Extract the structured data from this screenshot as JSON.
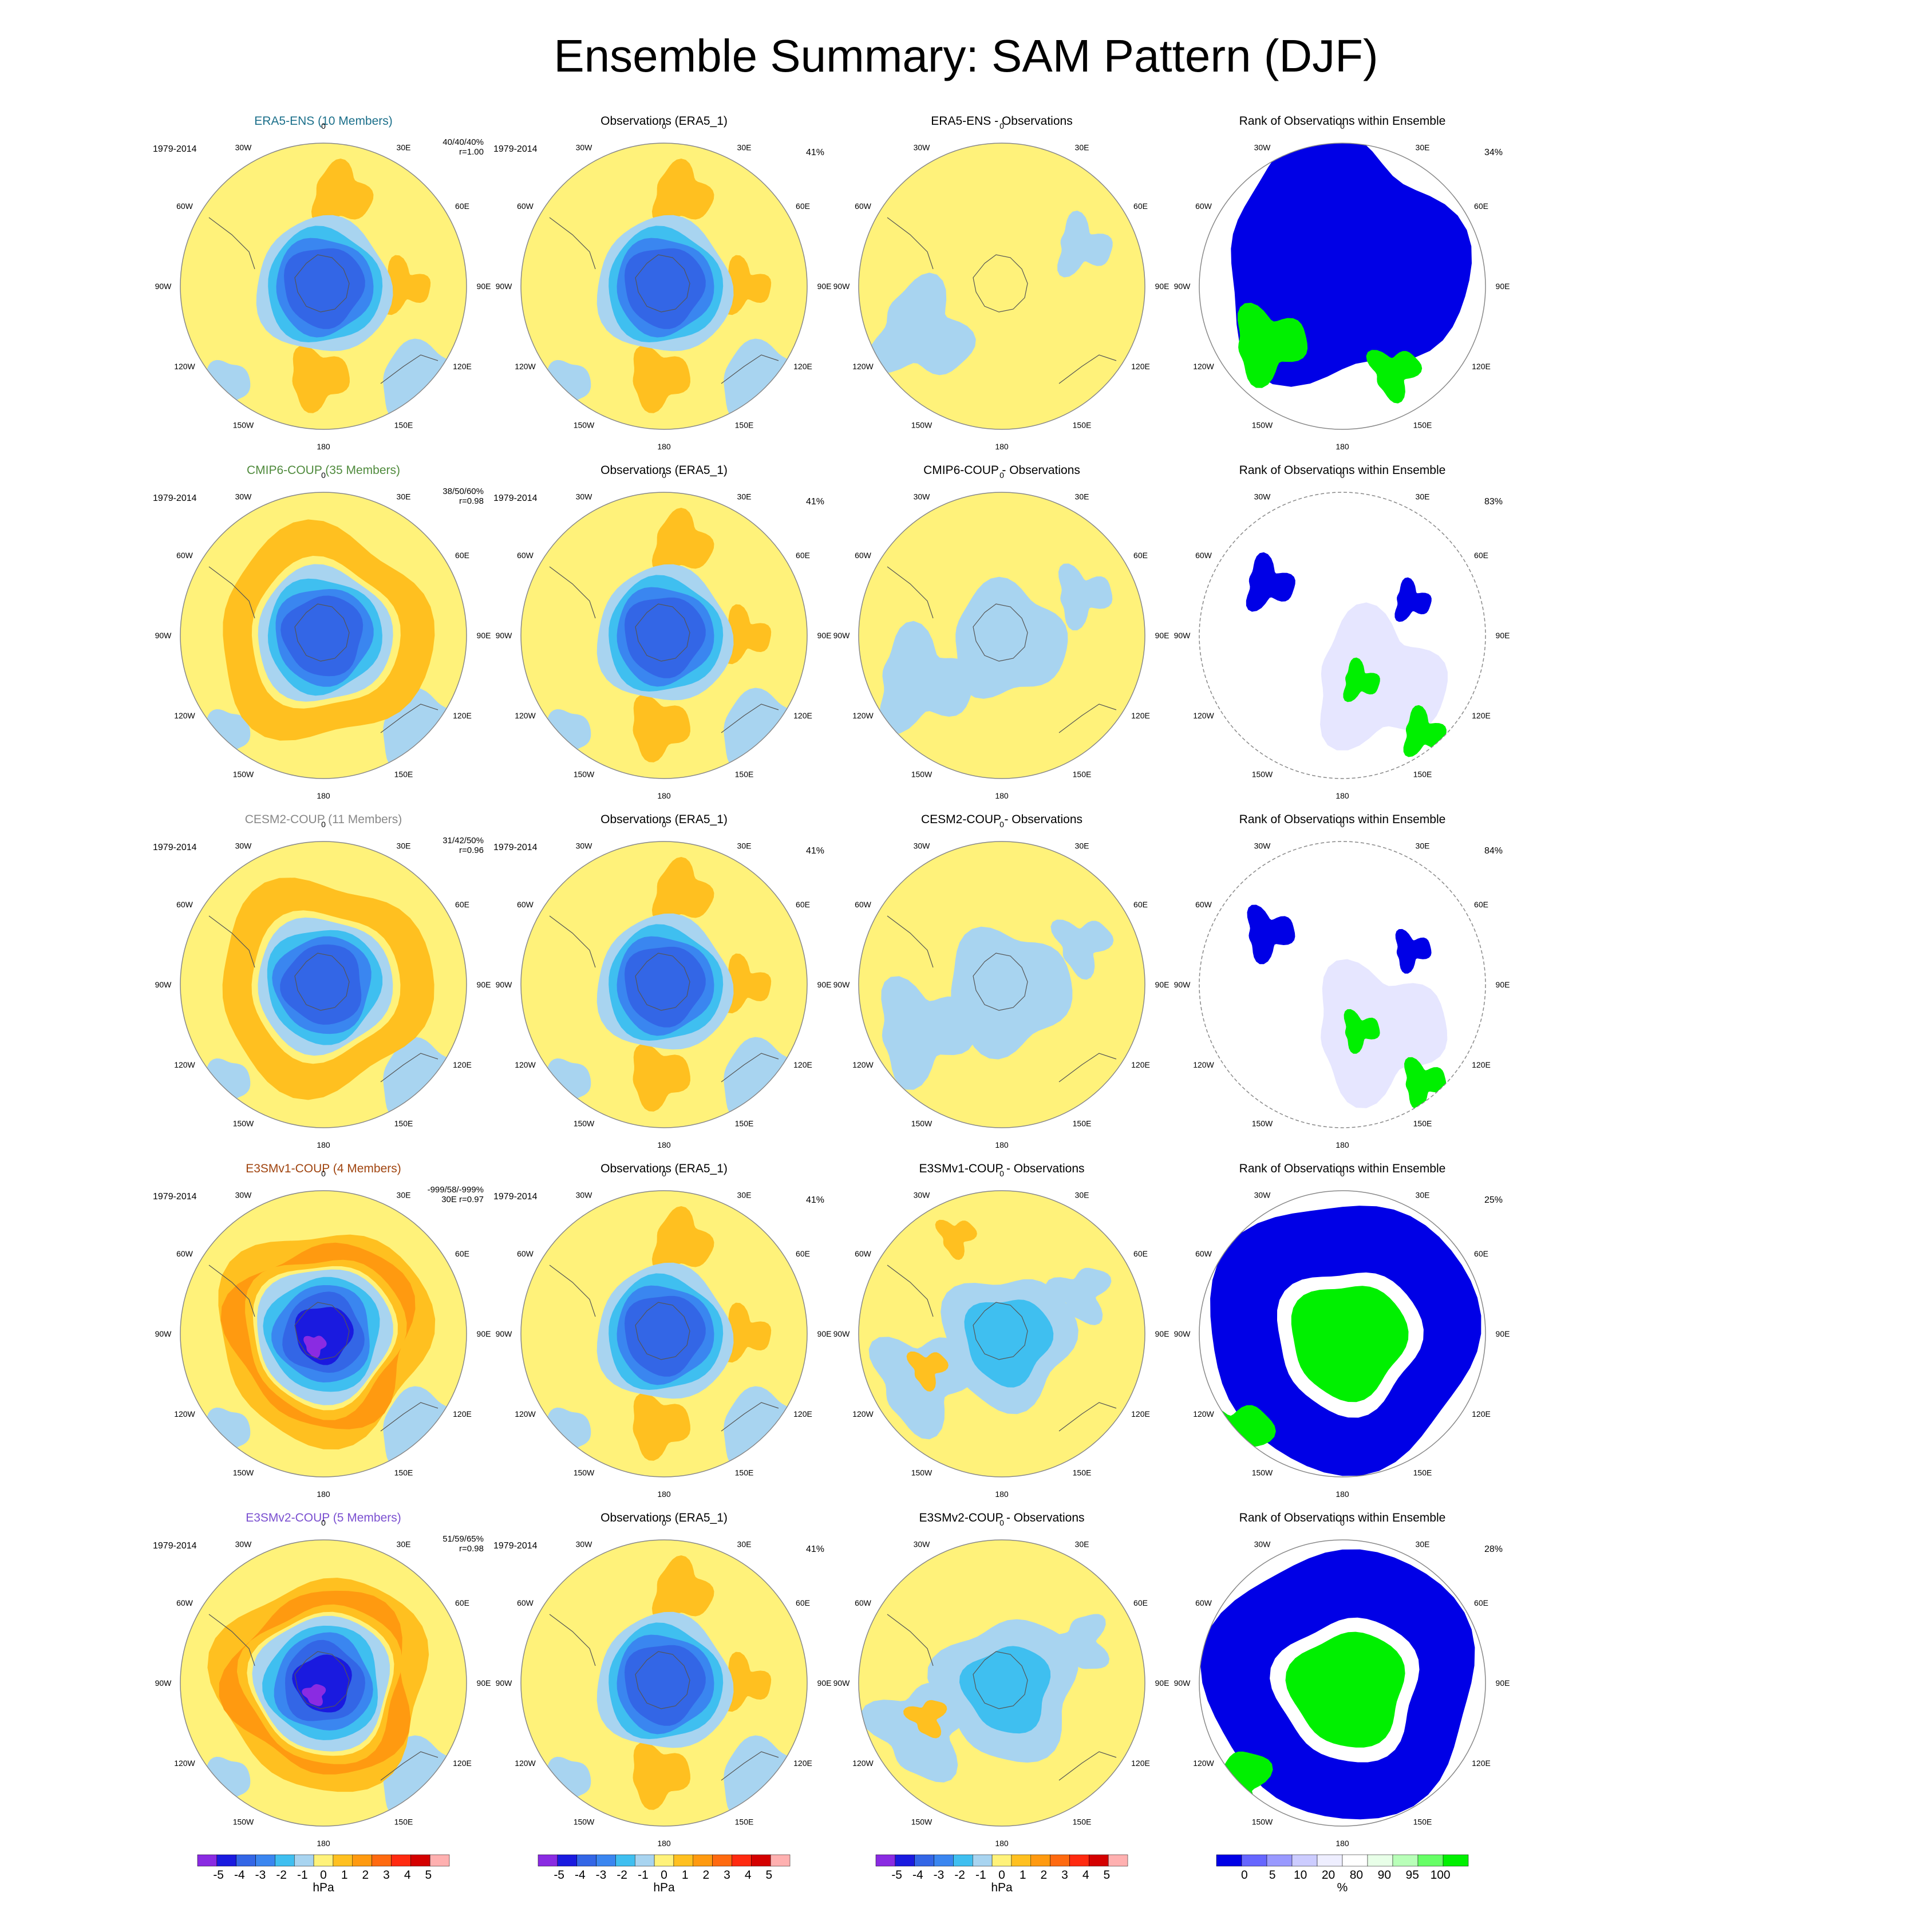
{
  "figure": {
    "title": "Ensemble Summary: SAM Pattern (DJF)"
  },
  "colors": {
    "m5": "#8a2be2",
    "m4": "#1a1adf",
    "m3": "#3366e6",
    "m2": "#3a86f0",
    "m1": "#3fbff0",
    "m0": "#a8d4f0",
    "p0": "#fff27a",
    "p1": "#ffc020",
    "p2": "#ff9a10",
    "p3": "#ff6a10",
    "p4": "#ff2a10",
    "p5": "#d40000",
    "p6": "#ffb0b0",
    "rank_low": "#0000e6",
    "rank_high": "#00f000",
    "rank_mid": "#ffffff"
  },
  "rows": [
    {
      "model_title": "ERA5-ENS (10 Members)",
      "model_color": "#1b6f8a",
      "stats1": "40/40/40%",
      "stats2": "r=1.00",
      "diff_title": "ERA5-ENS - Observations",
      "rank_pct": "34%"
    },
    {
      "model_title": "CMIP6-COUP (35 Members)",
      "model_color": "#4f8a3c",
      "stats1": "38/50/60%",
      "stats2": "r=0.98",
      "diff_title": "CMIP6-COUP - Observations",
      "rank_pct": "83%"
    },
    {
      "model_title": "CESM2-COUP (11 Members)",
      "model_color": "#888888",
      "stats1": "31/42/50%",
      "stats2": "r=0.96",
      "diff_title": "CESM2-COUP - Observations",
      "rank_pct": "84%"
    },
    {
      "model_title": "E3SMv1-COUP (4 Members)",
      "model_color": "#a0440f",
      "stats1": "-999/58/-999%",
      "stats2": "30E r=0.97",
      "diff_title": "E3SMv1-COUP - Observations",
      "rank_pct": "25%"
    },
    {
      "model_title": "E3SMv2-COUP (5 Members)",
      "model_color": "#7a4fd0",
      "stats1": "51/59/65%",
      "stats2": "r=0.98",
      "diff_title": "E3SMv2-COUP - Observations",
      "rank_pct": "28%"
    }
  ],
  "common": {
    "period": "1979-2014",
    "obs_title": "Observations (ERA5_1)",
    "obs_pct": "41%",
    "rank_title": "Rank of Observations within Ensemble",
    "lon_labels": [
      "0",
      "30E",
      "60E",
      "90E",
      "120E",
      "150E",
      "180",
      "150W",
      "120W",
      "90W",
      "60W",
      "30W"
    ]
  },
  "colorbars": {
    "hpa_ticks": [
      "-5",
      "-4",
      "-3",
      "-2",
      "-1",
      "0",
      "1",
      "2",
      "3",
      "4",
      "5"
    ],
    "hpa_unit": "hPa",
    "pct_ticks": [
      "0",
      "5",
      "10",
      "20",
      "80",
      "90",
      "95",
      "100"
    ],
    "pct_unit": "%"
  }
}
